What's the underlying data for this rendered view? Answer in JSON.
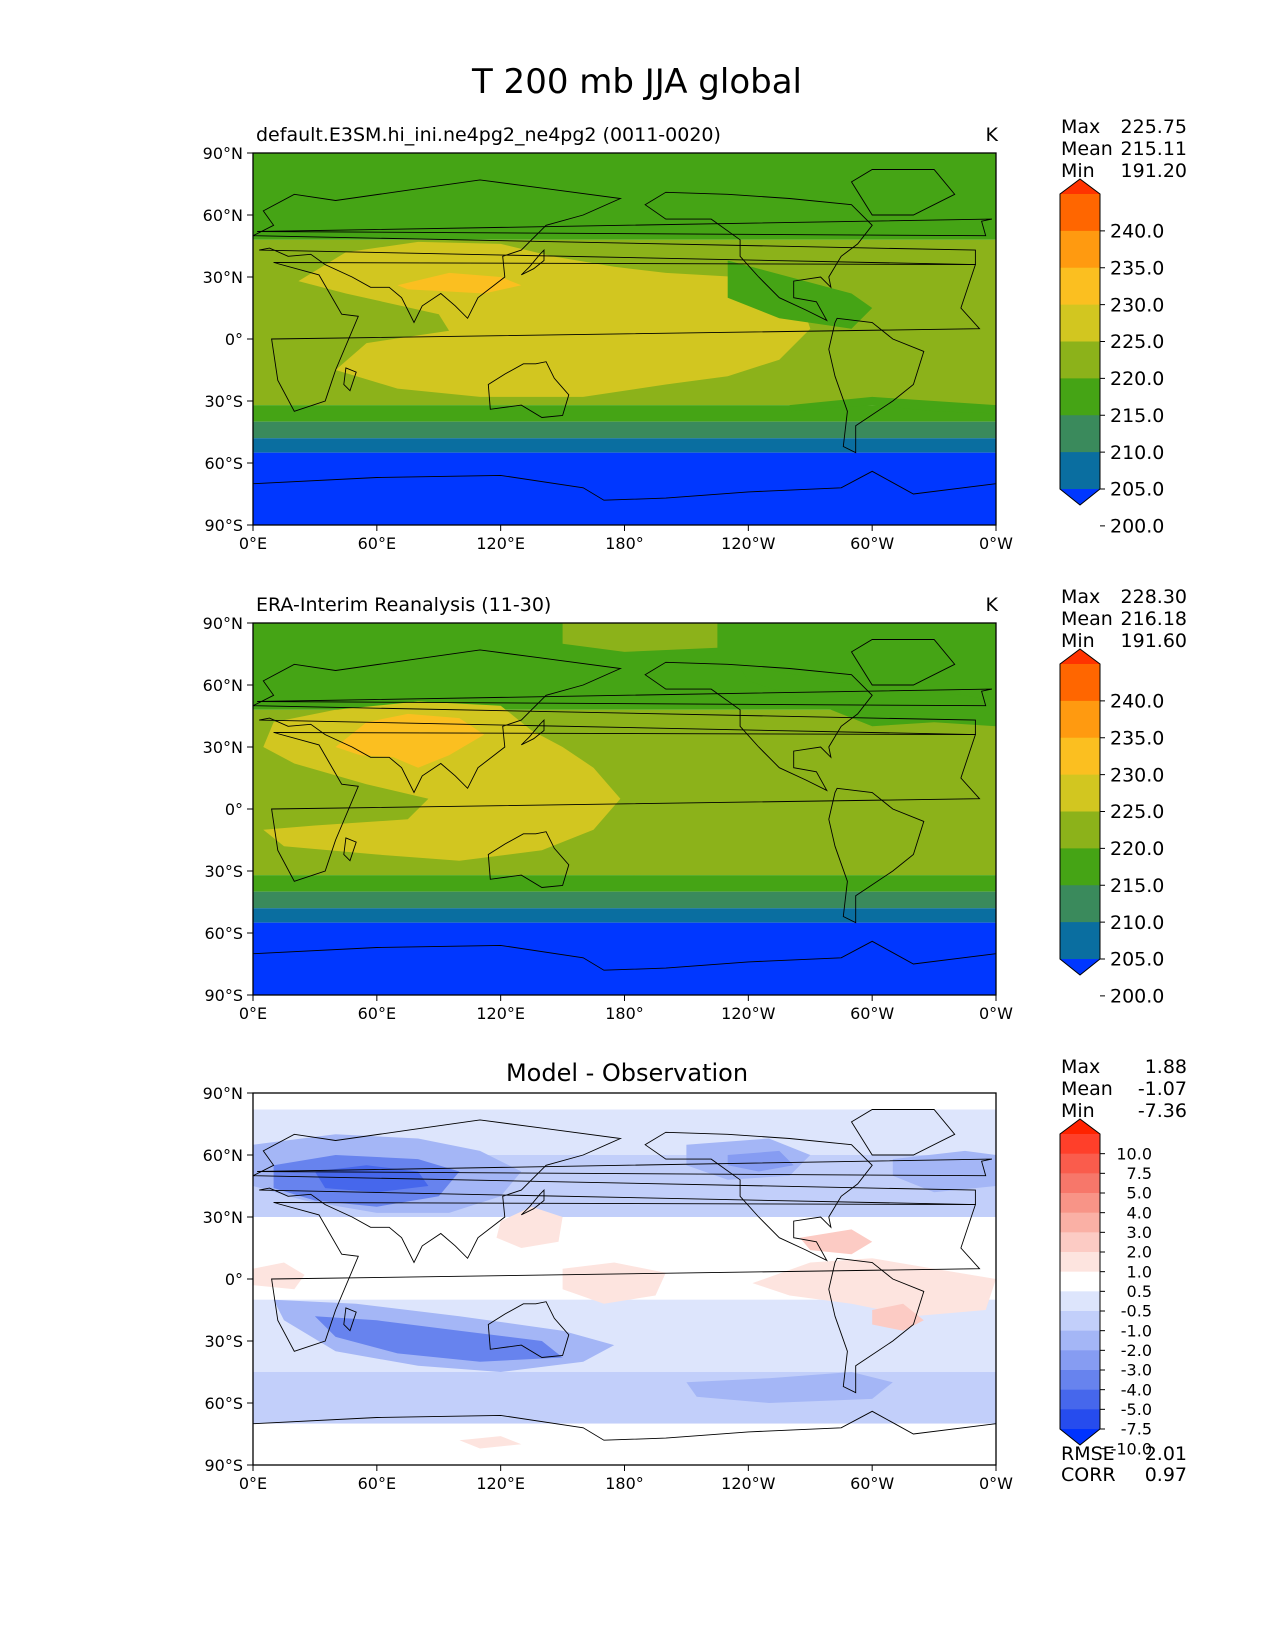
{
  "figure": {
    "title": "T 200 mb JJA global"
  },
  "axes": {
    "x_ticks": [
      "0°E",
      "60°E",
      "120°E",
      "180°",
      "120°W",
      "60°W",
      "0°W"
    ],
    "y_ticks": [
      "90°N",
      "60°N",
      "30°N",
      "0°",
      "30°S",
      "60°S",
      "90°S"
    ]
  },
  "chart_data": [
    {
      "type": "heatmap",
      "title": "default.E3SM.hi_ini.ne4pg2_ne4pg2 (0011-0020)",
      "units": "K",
      "xlim": [
        0,
        360
      ],
      "ylim": [
        -90,
        90
      ],
      "stats": [
        {
          "label": "Max",
          "value": "225.75"
        },
        {
          "label": "Mean",
          "value": "215.11"
        },
        {
          "label": "Min",
          "value": "191.20"
        }
      ],
      "colorbar": {
        "labels": [
          "240.0",
          "235.0",
          "230.0",
          "225.0",
          "220.0",
          "215.0",
          "210.0",
          "205.0",
          "200.0"
        ],
        "colors": [
          "#ff3300",
          "#ff6600",
          "#ff9a10",
          "#fbbf20",
          "#d2c620",
          "#8cb21a",
          "#45a415",
          "#3a8a5c",
          "#0a6ea0",
          "#0037ff"
        ],
        "extend": "both"
      }
    },
    {
      "type": "heatmap",
      "title": "ERA-Interim Reanalysis (11-30)",
      "units": "K",
      "xlim": [
        0,
        360
      ],
      "ylim": [
        -90,
        90
      ],
      "stats": [
        {
          "label": "Max",
          "value": "228.30"
        },
        {
          "label": "Mean",
          "value": "216.18"
        },
        {
          "label": "Min",
          "value": "191.60"
        }
      ],
      "colorbar": {
        "labels": [
          "240.0",
          "235.0",
          "230.0",
          "225.0",
          "220.0",
          "215.0",
          "210.0",
          "205.0",
          "200.0"
        ],
        "colors": [
          "#ff3300",
          "#ff6600",
          "#ff9a10",
          "#fbbf20",
          "#d2c620",
          "#8cb21a",
          "#45a415",
          "#3a8a5c",
          "#0a6ea0",
          "#0037ff"
        ],
        "extend": "both"
      }
    },
    {
      "type": "heatmap",
      "title": "Model - Observation",
      "units": "",
      "xlim": [
        0,
        360
      ],
      "ylim": [
        -90,
        90
      ],
      "stats": [
        {
          "label": "Max",
          "value": "1.88"
        },
        {
          "label": "Mean",
          "value": "-1.07"
        },
        {
          "label": "Min",
          "value": "-7.36"
        }
      ],
      "metrics": [
        {
          "label": "RMSE",
          "value": "2.01"
        },
        {
          "label": "CORR",
          "value": "0.97"
        }
      ],
      "colorbar": {
        "labels": [
          "10.0",
          "7.5",
          "5.0",
          "4.0",
          "3.0",
          "2.0",
          "1.0",
          "0.5",
          "-0.5",
          "-1.0",
          "-2.0",
          "-3.0",
          "-4.0",
          "-5.0",
          "-7.5",
          "-10.0"
        ],
        "colors": [
          "#ff2200",
          "#ff3f2a",
          "#fa5c4c",
          "#f7776a",
          "#f89487",
          "#fab0a5",
          "#fccbc4",
          "#fde4df",
          "#ffffff",
          "#dde5fc",
          "#c2cffa",
          "#a4b6f6",
          "#869cf2",
          "#6783ee",
          "#4667ec",
          "#264cee",
          "#0033ff"
        ],
        "extend": "both"
      }
    }
  ]
}
